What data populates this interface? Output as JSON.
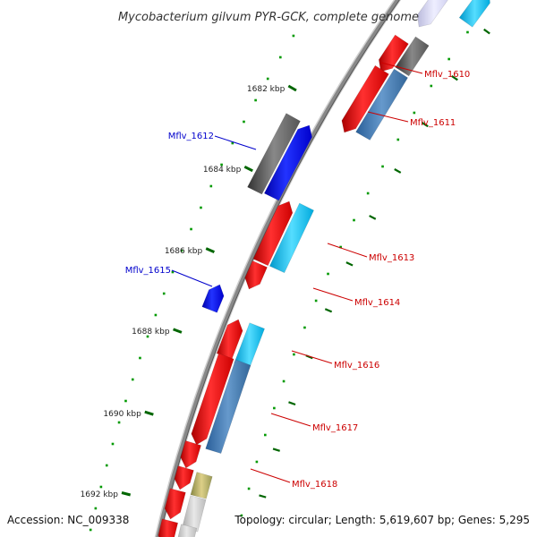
{
  "title": "Mycobacterium gilvum PYR-GCK, complete genome",
  "footer": {
    "accession": "Accession: NC_009338",
    "summary": "Topology: circular; Length: 5,619,607 bp; Genes: 5,295"
  },
  "scale_ticks": [
    {
      "label": "1682 kbp"
    },
    {
      "label": "1684 kbp"
    },
    {
      "label": "1686 kbp"
    },
    {
      "label": "1688 kbp"
    },
    {
      "label": "1690 kbp"
    },
    {
      "label": "1692 kbp"
    }
  ],
  "gene_labels": [
    {
      "label": "Mflv_1610",
      "color": "#cc0000"
    },
    {
      "label": "Mflv_1611",
      "color": "#cc0000"
    },
    {
      "label": "Mflv_1612",
      "color": "#0000cc"
    },
    {
      "label": "Mflv_1613",
      "color": "#cc0000"
    },
    {
      "label": "Mflv_1614",
      "color": "#cc0000"
    },
    {
      "label": "Mflv_1615",
      "color": "#0000cc"
    },
    {
      "label": "Mflv_1616",
      "color": "#cc0000"
    },
    {
      "label": "Mflv_1617",
      "color": "#cc0000"
    },
    {
      "label": "Mflv_1618",
      "color": "#cc0000"
    }
  ],
  "colors": {
    "backbone": "#888888",
    "forward_cds": "#ff0000",
    "reverse_cds": "#0000ff",
    "tick_major": "#006600",
    "dots": "#009900"
  }
}
